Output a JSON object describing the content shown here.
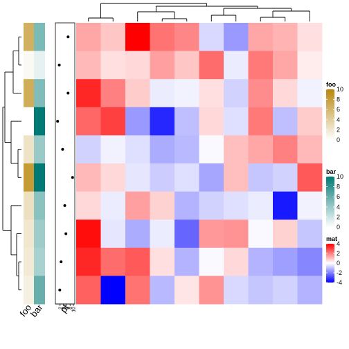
{
  "chart_data": {
    "type": "heatmap",
    "title": "",
    "rows": 10,
    "cols": 10,
    "matrix": [
      [
        1.4,
        0.9,
        4.0,
        2.2,
        1.9,
        -0.6,
        -1.6,
        1.4,
        1.2,
        0.5
      ],
      [
        1.1,
        0.5,
        0.6,
        1.5,
        0.9,
        2.3,
        -0.3,
        2.1,
        1.4,
        0.3
      ],
      [
        3.4,
        2.0,
        0.8,
        -0.3,
        -0.2,
        0.5,
        -0.7,
        1.8,
        0.6,
        -0.2
      ],
      [
        2.4,
        3.0,
        -1.6,
        -3.4,
        -1.0,
        0.6,
        -0.5,
        2.1,
        -1.0,
        0.8
      ],
      [
        -0.7,
        -0.2,
        -0.5,
        -1.3,
        -1.1,
        -0.1,
        1.0,
        1.4,
        2.0,
        1.1
      ],
      [
        1.1,
        0.6,
        -0.4,
        -0.8,
        -0.5,
        -1.4,
        1.0,
        -0.9,
        -0.7,
        2.6
      ],
      [
        0.6,
        -0.3,
        1.5,
        0.7,
        -1.2,
        -0.7,
        -0.5,
        -0.3,
        -3.6,
        -0.2
      ],
      [
        3.8,
        -0.4,
        -1.3,
        -0.3,
        -2.4,
        1.6,
        1.7,
        -0.1,
        0.7,
        -0.9
      ],
      [
        3.4,
        2.3,
        2.6,
        0.5,
        -1.2,
        -0.1,
        0.6,
        -1.2,
        -1.5,
        -1.9
      ],
      [
        2.5,
        -4.2,
        2.2,
        -1.1,
        0.4,
        1.7,
        -0.6,
        -0.9,
        -0.7,
        -1.2
      ]
    ],
    "row_annotations": {
      "foo": [
        6.5,
        0.5,
        6.8,
        0.0,
        2.3,
        8.3,
        2.6,
        2.0,
        1.7,
        1.2
      ],
      "bar": [
        5.2,
        1.0,
        5.0,
        10.0,
        4.0,
        10.0,
        4.6,
        3.8,
        3.4,
        6.0
      ],
      "pt": [
        6.8,
        1.5,
        6.8,
        0.5,
        3.5,
        9.5,
        4.8,
        5.5,
        2.6,
        1.8
      ]
    },
    "annotation_labels": {
      "foo": "foo",
      "bar": "bar",
      "pt": "pt"
    },
    "pt_axis": {
      "ticks": [
        "2",
        "4",
        "6",
        "8",
        "10"
      ],
      "lim": [
        0,
        10
      ]
    },
    "legends": [
      {
        "title": "foo",
        "ticks": [
          "10",
          "8",
          "6",
          "4",
          "2",
          "0"
        ],
        "range": [
          0,
          10
        ],
        "colors": [
          "#ffffff",
          "#b8860b"
        ]
      },
      {
        "title": "bar",
        "ticks": [
          "10",
          "8",
          "6",
          "4",
          "2",
          "0"
        ],
        "range": [
          0,
          10
        ],
        "colors": [
          "#ffffff",
          "#007a75"
        ]
      },
      {
        "title": "mat",
        "ticks": [
          "4",
          "2",
          "0",
          "-2",
          "-4"
        ],
        "range": [
          -4,
          4
        ],
        "colors": [
          "#0000ff",
          "#ffffff",
          "#ff0000"
        ]
      }
    ],
    "legend_placement": "right",
    "col_dendrogram": true,
    "row_dendrogram": true
  }
}
